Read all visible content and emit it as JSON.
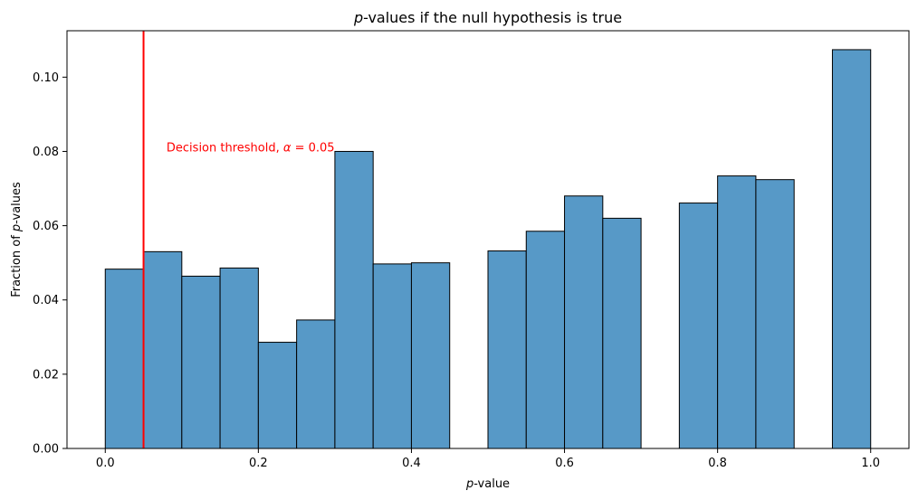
{
  "chart_data": {
    "type": "bar",
    "title_italic": "p",
    "title_rest": "-values if the null hypothesis is true",
    "xlabel_italic": "p",
    "xlabel_rest": "-value",
    "ylabel_prefix": "Fraction of ",
    "ylabel_italic": "p",
    "ylabel_suffix": "-values",
    "xlim": [
      -0.05,
      1.05
    ],
    "ylim": [
      0,
      0.1125
    ],
    "xticks": [
      0.0,
      0.2,
      0.4,
      0.6,
      0.8,
      1.0
    ],
    "xtick_labels": [
      "0.0",
      "0.2",
      "0.4",
      "0.6",
      "0.8",
      "1.0"
    ],
    "yticks": [
      0.0,
      0.02,
      0.04,
      0.06,
      0.08,
      0.1
    ],
    "ytick_labels": [
      "0.00",
      "0.02",
      "0.04",
      "0.06",
      "0.08",
      "0.10"
    ],
    "bin_width": 0.05,
    "bins": [
      {
        "x0": 0.0,
        "value": 0.0483
      },
      {
        "x0": 0.05,
        "value": 0.053
      },
      {
        "x0": 0.1,
        "value": 0.0464
      },
      {
        "x0": 0.15,
        "value": 0.0486
      },
      {
        "x0": 0.2,
        "value": 0.0286
      },
      {
        "x0": 0.25,
        "value": 0.0346
      },
      {
        "x0": 0.3,
        "value": 0.08
      },
      {
        "x0": 0.35,
        "value": 0.0497
      },
      {
        "x0": 0.4,
        "value": 0.05
      },
      {
        "x0": 0.45,
        "value": 0.0
      },
      {
        "x0": 0.5,
        "value": 0.0532
      },
      {
        "x0": 0.55,
        "value": 0.0585
      },
      {
        "x0": 0.6,
        "value": 0.068
      },
      {
        "x0": 0.65,
        "value": 0.062
      },
      {
        "x0": 0.7,
        "value": 0.0
      },
      {
        "x0": 0.75,
        "value": 0.0661
      },
      {
        "x0": 0.8,
        "value": 0.0734
      },
      {
        "x0": 0.85,
        "value": 0.0724
      },
      {
        "x0": 0.9,
        "value": 0.0
      },
      {
        "x0": 0.95,
        "value": 0.1074
      }
    ],
    "bar_color": "#5799c7",
    "bar_edge_color": "#000000",
    "threshold": {
      "x": 0.05,
      "color": "#ff0000",
      "label_prefix": "Decision threshold, ",
      "label_symbol": "α",
      "label_suffix": " = 0.05",
      "label_x": 0.08,
      "label_y": 0.08
    },
    "grid": false,
    "legend": "none"
  }
}
